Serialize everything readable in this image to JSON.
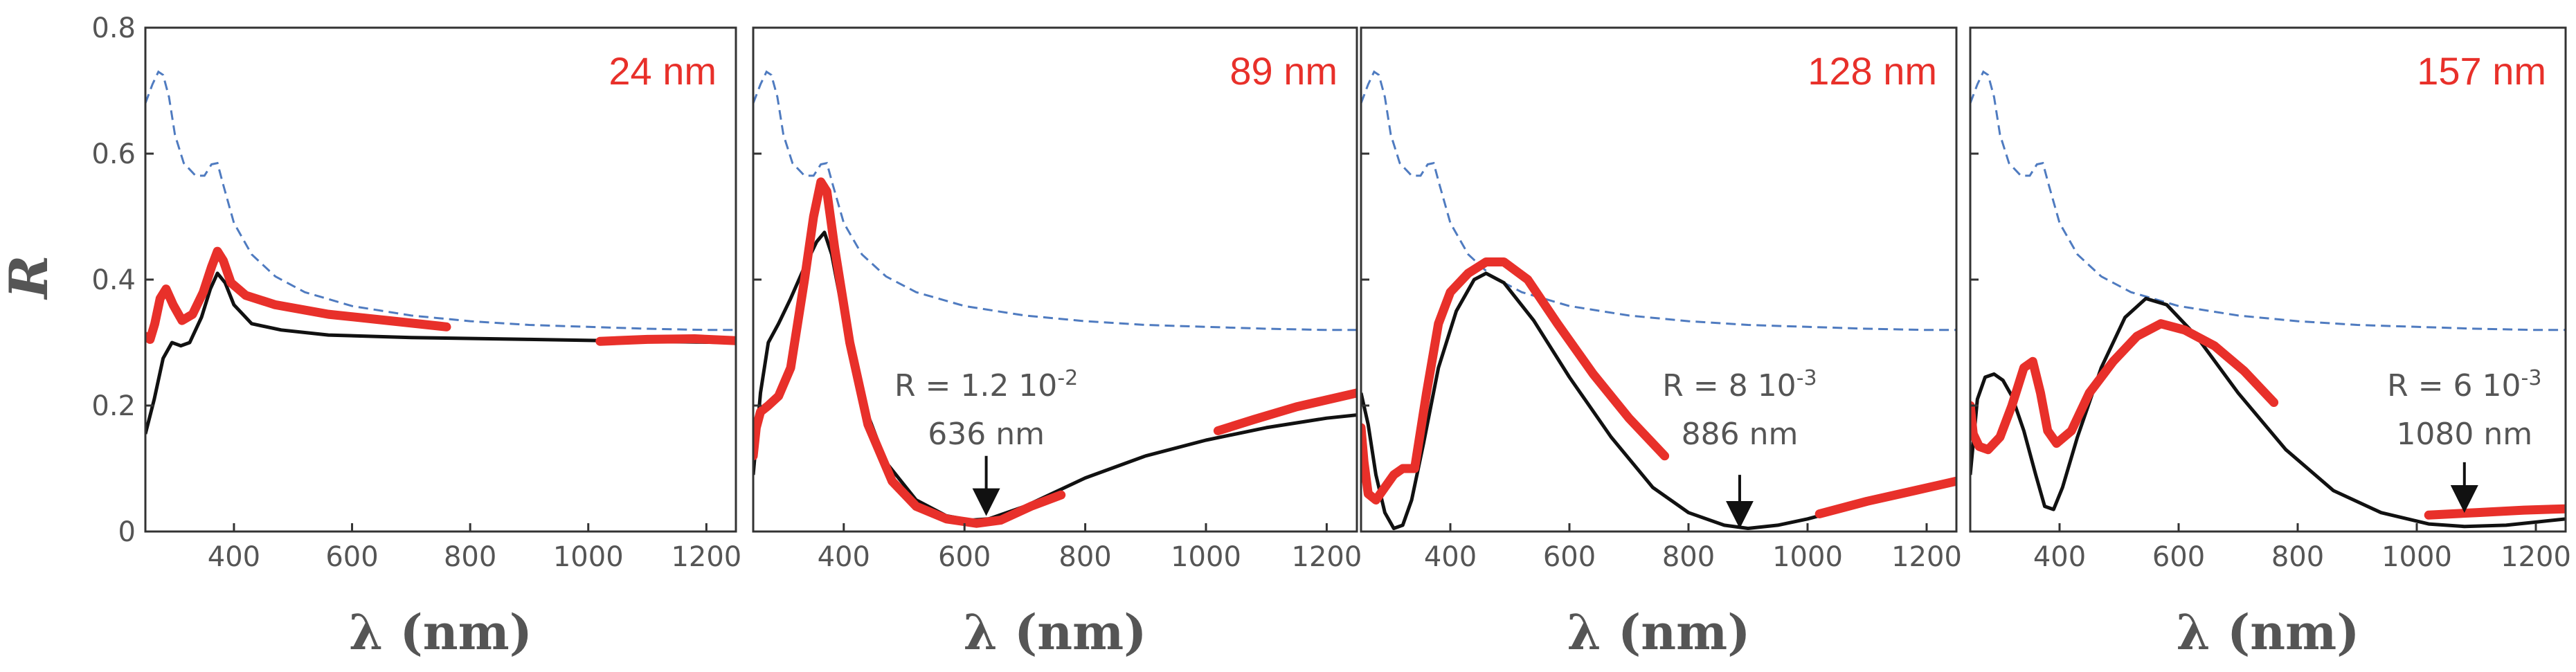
{
  "chart_data": {
    "type": "line",
    "ylabel": "R",
    "xlabel": "λ (nm)",
    "ylim": [
      0,
      0.8
    ],
    "xlim": [
      250,
      1250
    ],
    "yticks": [
      0,
      0.2,
      0.4,
      0.6,
      0.8
    ],
    "ytick_labels": [
      "0",
      "0.2",
      "0.4",
      "0.6",
      "0.8"
    ],
    "xticks": [
      400,
      600,
      800,
      1000,
      1200
    ],
    "xtick_labels": [
      "400",
      "600",
      "800",
      "1000",
      "1200"
    ],
    "colors": {
      "reference": "#4f7bc0",
      "simulation": "#111111",
      "measurement": "#e8302a",
      "annotation": "#111111"
    },
    "panels": [
      {
        "label": "24 nm",
        "show_yticks": true,
        "reference": [
          [
            250,
            0.68
          ],
          [
            262,
            0.71
          ],
          [
            272,
            0.73
          ],
          [
            280,
            0.725
          ],
          [
            290,
            0.69
          ],
          [
            300,
            0.63
          ],
          [
            315,
            0.585
          ],
          [
            335,
            0.565
          ],
          [
            350,
            0.565
          ],
          [
            362,
            0.583
          ],
          [
            372,
            0.585
          ],
          [
            382,
            0.55
          ],
          [
            400,
            0.49
          ],
          [
            430,
            0.44
          ],
          [
            470,
            0.405
          ],
          [
            520,
            0.38
          ],
          [
            600,
            0.358
          ],
          [
            700,
            0.343
          ],
          [
            800,
            0.334
          ],
          [
            900,
            0.328
          ],
          [
            1000,
            0.325
          ],
          [
            1100,
            0.322
          ],
          [
            1200,
            0.32
          ],
          [
            1250,
            0.32
          ]
        ],
        "simulation": [
          [
            250,
            0.155
          ],
          [
            265,
            0.21
          ],
          [
            280,
            0.275
          ],
          [
            295,
            0.3
          ],
          [
            310,
            0.295
          ],
          [
            325,
            0.3
          ],
          [
            345,
            0.34
          ],
          [
            360,
            0.385
          ],
          [
            372,
            0.41
          ],
          [
            385,
            0.395
          ],
          [
            400,
            0.36
          ],
          [
            430,
            0.33
          ],
          [
            480,
            0.32
          ],
          [
            560,
            0.312
          ],
          [
            700,
            0.308
          ],
          [
            900,
            0.305
          ],
          [
            1100,
            0.302
          ],
          [
            1250,
            0.3
          ]
        ],
        "measurement": [
          [
            [
              250,
              0.31
            ],
            [
              258,
              0.305
            ],
            [
              266,
              0.33
            ],
            [
              275,
              0.37
            ],
            [
              285,
              0.385
            ],
            [
              297,
              0.36
            ],
            [
              312,
              0.335
            ],
            [
              330,
              0.345
            ],
            [
              348,
              0.38
            ],
            [
              362,
              0.42
            ],
            [
              372,
              0.445
            ],
            [
              382,
              0.43
            ],
            [
              395,
              0.395
            ],
            [
              420,
              0.375
            ],
            [
              470,
              0.36
            ],
            [
              560,
              0.345
            ],
            [
              660,
              0.335
            ],
            [
              760,
              0.325
            ]
          ],
          [
            [
              1020,
              0.302
            ],
            [
              1100,
              0.305
            ],
            [
              1180,
              0.306
            ],
            [
              1250,
              0.303
            ]
          ]
        ]
      },
      {
        "label": "89 nm",
        "show_yticks": false,
        "reference": [
          [
            250,
            0.68
          ],
          [
            262,
            0.71
          ],
          [
            272,
            0.73
          ],
          [
            280,
            0.725
          ],
          [
            290,
            0.69
          ],
          [
            300,
            0.63
          ],
          [
            315,
            0.585
          ],
          [
            335,
            0.565
          ],
          [
            350,
            0.565
          ],
          [
            362,
            0.583
          ],
          [
            372,
            0.585
          ],
          [
            382,
            0.55
          ],
          [
            400,
            0.49
          ],
          [
            430,
            0.44
          ],
          [
            470,
            0.405
          ],
          [
            520,
            0.38
          ],
          [
            600,
            0.358
          ],
          [
            700,
            0.343
          ],
          [
            800,
            0.334
          ],
          [
            900,
            0.328
          ],
          [
            1000,
            0.325
          ],
          [
            1100,
            0.322
          ],
          [
            1200,
            0.32
          ],
          [
            1250,
            0.32
          ]
        ],
        "simulation": [
          [
            250,
            0.09
          ],
          [
            262,
            0.22
          ],
          [
            275,
            0.3
          ],
          [
            292,
            0.33
          ],
          [
            312,
            0.37
          ],
          [
            335,
            0.42
          ],
          [
            355,
            0.46
          ],
          [
            368,
            0.475
          ],
          [
            380,
            0.44
          ],
          [
            400,
            0.34
          ],
          [
            430,
            0.21
          ],
          [
            470,
            0.11
          ],
          [
            520,
            0.05
          ],
          [
            570,
            0.025
          ],
          [
            610,
            0.018
          ],
          [
            640,
            0.02
          ],
          [
            700,
            0.04
          ],
          [
            800,
            0.085
          ],
          [
            900,
            0.12
          ],
          [
            1000,
            0.145
          ],
          [
            1100,
            0.165
          ],
          [
            1200,
            0.18
          ],
          [
            1250,
            0.185
          ]
        ],
        "measurement": [
          [
            [
              250,
              0.12
            ],
            [
              255,
              0.165
            ],
            [
              262,
              0.19
            ],
            [
              275,
              0.2
            ],
            [
              292,
              0.215
            ],
            [
              312,
              0.26
            ],
            [
              335,
              0.4
            ],
            [
              350,
              0.5
            ],
            [
              362,
              0.555
            ],
            [
              372,
              0.54
            ],
            [
              385,
              0.45
            ],
            [
              410,
              0.3
            ],
            [
              440,
              0.17
            ],
            [
              480,
              0.08
            ],
            [
              520,
              0.04
            ],
            [
              570,
              0.02
            ],
            [
              620,
              0.013
            ],
            [
              660,
              0.018
            ],
            [
              710,
              0.04
            ],
            [
              760,
              0.058
            ]
          ],
          [
            [
              1020,
              0.16
            ],
            [
              1080,
              0.178
            ],
            [
              1150,
              0.198
            ],
            [
              1250,
              0.22
            ]
          ]
        ],
        "annotation": {
          "value_text": "R = 1.2 10",
          "exponent": "-2",
          "wavelength_text": "636 nm",
          "arrow_x": 636,
          "arrow_y_bottom": 0.04,
          "arrow_y_top": 0.12
        }
      },
      {
        "label": "128 nm",
        "show_yticks": false,
        "reference": [
          [
            250,
            0.68
          ],
          [
            262,
            0.71
          ],
          [
            272,
            0.73
          ],
          [
            280,
            0.725
          ],
          [
            290,
            0.69
          ],
          [
            300,
            0.63
          ],
          [
            315,
            0.585
          ],
          [
            335,
            0.565
          ],
          [
            350,
            0.565
          ],
          [
            362,
            0.583
          ],
          [
            372,
            0.585
          ],
          [
            382,
            0.55
          ],
          [
            400,
            0.49
          ],
          [
            430,
            0.44
          ],
          [
            470,
            0.405
          ],
          [
            520,
            0.38
          ],
          [
            600,
            0.358
          ],
          [
            700,
            0.343
          ],
          [
            800,
            0.334
          ],
          [
            900,
            0.328
          ],
          [
            1000,
            0.325
          ],
          [
            1100,
            0.322
          ],
          [
            1200,
            0.32
          ],
          [
            1250,
            0.32
          ]
        ],
        "simulation": [
          [
            250,
            0.22
          ],
          [
            262,
            0.17
          ],
          [
            275,
            0.09
          ],
          [
            290,
            0.03
          ],
          [
            305,
            0.005
          ],
          [
            320,
            0.01
          ],
          [
            335,
            0.05
          ],
          [
            355,
            0.14
          ],
          [
            380,
            0.26
          ],
          [
            410,
            0.35
          ],
          [
            440,
            0.4
          ],
          [
            460,
            0.41
          ],
          [
            490,
            0.395
          ],
          [
            540,
            0.335
          ],
          [
            600,
            0.245
          ],
          [
            670,
            0.15
          ],
          [
            740,
            0.07
          ],
          [
            800,
            0.03
          ],
          [
            860,
            0.01
          ],
          [
            900,
            0.005
          ],
          [
            950,
            0.01
          ],
          [
            1000,
            0.02
          ],
          [
            1100,
            0.045
          ],
          [
            1200,
            0.07
          ],
          [
            1250,
            0.08
          ]
        ],
        "measurement": [
          [
            [
              250,
              0.165
            ],
            [
              255,
              0.11
            ],
            [
              262,
              0.06
            ],
            [
              275,
              0.05
            ],
            [
              290,
              0.07
            ],
            [
              305,
              0.09
            ],
            [
              320,
              0.1
            ],
            [
              340,
              0.1
            ],
            [
              360,
              0.22
            ],
            [
              380,
              0.33
            ],
            [
              400,
              0.38
            ],
            [
              430,
              0.41
            ],
            [
              460,
              0.428
            ],
            [
              490,
              0.428
            ],
            [
              530,
              0.4
            ],
            [
              580,
              0.33
            ],
            [
              640,
              0.25
            ],
            [
              700,
              0.18
            ],
            [
              760,
              0.12
            ]
          ],
          [
            [
              1020,
              0.028
            ],
            [
              1100,
              0.048
            ],
            [
              1180,
              0.065
            ],
            [
              1250,
              0.08
            ]
          ]
        ],
        "annotation": {
          "value_text": "R = 8 10",
          "exponent": "-3",
          "wavelength_text": "886 nm",
          "arrow_x": 886,
          "arrow_y_bottom": 0.02,
          "arrow_y_top": 0.09
        }
      },
      {
        "label": "157 nm",
        "show_yticks": false,
        "reference": [
          [
            250,
            0.68
          ],
          [
            262,
            0.71
          ],
          [
            272,
            0.73
          ],
          [
            280,
            0.725
          ],
          [
            290,
            0.69
          ],
          [
            300,
            0.63
          ],
          [
            315,
            0.585
          ],
          [
            335,
            0.565
          ],
          [
            350,
            0.565
          ],
          [
            362,
            0.583
          ],
          [
            372,
            0.585
          ],
          [
            382,
            0.55
          ],
          [
            400,
            0.49
          ],
          [
            430,
            0.44
          ],
          [
            470,
            0.405
          ],
          [
            520,
            0.38
          ],
          [
            600,
            0.358
          ],
          [
            700,
            0.343
          ],
          [
            800,
            0.334
          ],
          [
            900,
            0.328
          ],
          [
            1000,
            0.325
          ],
          [
            1100,
            0.322
          ],
          [
            1200,
            0.32
          ],
          [
            1250,
            0.32
          ]
        ],
        "simulation": [
          [
            250,
            0.09
          ],
          [
            262,
            0.21
          ],
          [
            275,
            0.245
          ],
          [
            290,
            0.25
          ],
          [
            305,
            0.24
          ],
          [
            320,
            0.215
          ],
          [
            340,
            0.16
          ],
          [
            360,
            0.09
          ],
          [
            375,
            0.04
          ],
          [
            390,
            0.035
          ],
          [
            405,
            0.07
          ],
          [
            430,
            0.15
          ],
          [
            470,
            0.26
          ],
          [
            510,
            0.34
          ],
          [
            545,
            0.37
          ],
          [
            580,
            0.36
          ],
          [
            630,
            0.31
          ],
          [
            700,
            0.22
          ],
          [
            780,
            0.13
          ],
          [
            860,
            0.065
          ],
          [
            940,
            0.03
          ],
          [
            1020,
            0.012
          ],
          [
            1080,
            0.008
          ],
          [
            1150,
            0.01
          ],
          [
            1200,
            0.015
          ],
          [
            1250,
            0.02
          ]
        ],
        "measurement": [
          [
            [
              250,
              0.2
            ],
            [
              255,
              0.155
            ],
            [
              265,
              0.135
            ],
            [
              280,
              0.13
            ],
            [
              300,
              0.15
            ],
            [
              320,
              0.2
            ],
            [
              340,
              0.26
            ],
            [
              355,
              0.27
            ],
            [
              368,
              0.22
            ],
            [
              380,
              0.16
            ],
            [
              395,
              0.14
            ],
            [
              420,
              0.16
            ],
            [
              450,
              0.22
            ],
            [
              490,
              0.27
            ],
            [
              530,
              0.31
            ],
            [
              570,
              0.33
            ],
            [
              610,
              0.32
            ],
            [
              660,
              0.295
            ],
            [
              710,
              0.255
            ],
            [
              760,
              0.205
            ]
          ],
          [
            [
              1020,
              0.026
            ],
            [
              1100,
              0.03
            ],
            [
              1180,
              0.034
            ],
            [
              1250,
              0.036
            ]
          ]
        ],
        "annotation": {
          "value_text": "R = 6 10",
          "exponent": "-3",
          "wavelength_text": "1080 nm",
          "arrow_x": 1080,
          "arrow_y_bottom": 0.045,
          "arrow_y_top": 0.11
        }
      }
    ]
  }
}
